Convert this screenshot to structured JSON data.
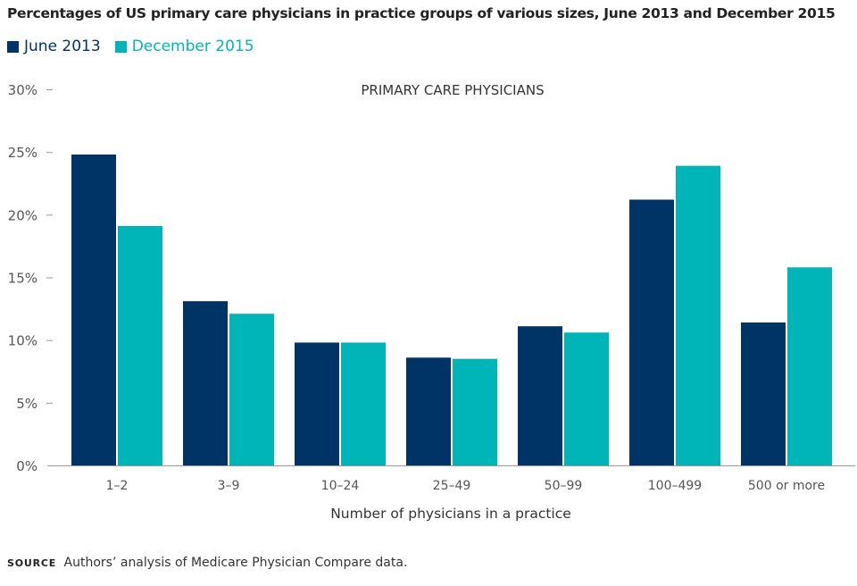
{
  "header": {
    "title": "Percentages of US primary care physicians in practice groups of various sizes, June 2013 and December 2015"
  },
  "legend": [
    {
      "label": "June 2013",
      "color": "#003366"
    },
    {
      "label": "December 2015",
      "color": "#00b5b8"
    }
  ],
  "footer": {
    "source_tag": "SOURCE",
    "source_text": "Authors’ analysis of Medicare Physician Compare data."
  },
  "chart_data": {
    "type": "bar",
    "title": "PRIMARY CARE PHYSICIANS",
    "xlabel": "Number of physicians in a practice",
    "ylabel": "",
    "ylim": [
      0,
      30
    ],
    "yticks": [
      0,
      5,
      10,
      15,
      20,
      25,
      30
    ],
    "ytick_labels": [
      "0%",
      "5%",
      "10%",
      "15%",
      "20%",
      "25%",
      "30%"
    ],
    "categories": [
      "1–2",
      "3–9",
      "10–24",
      "25–49",
      "50–99",
      "100–499",
      "500 or more"
    ],
    "series": [
      {
        "name": "June 2013",
        "color": "#003366",
        "values": [
          24.8,
          13.1,
          9.8,
          8.6,
          11.1,
          21.2,
          11.4
        ]
      },
      {
        "name": "December 2015",
        "color": "#00b5b8",
        "values": [
          19.1,
          12.1,
          9.8,
          8.5,
          10.6,
          23.9,
          15.8
        ]
      }
    ],
    "legend_position": "top-left",
    "grid": false
  }
}
